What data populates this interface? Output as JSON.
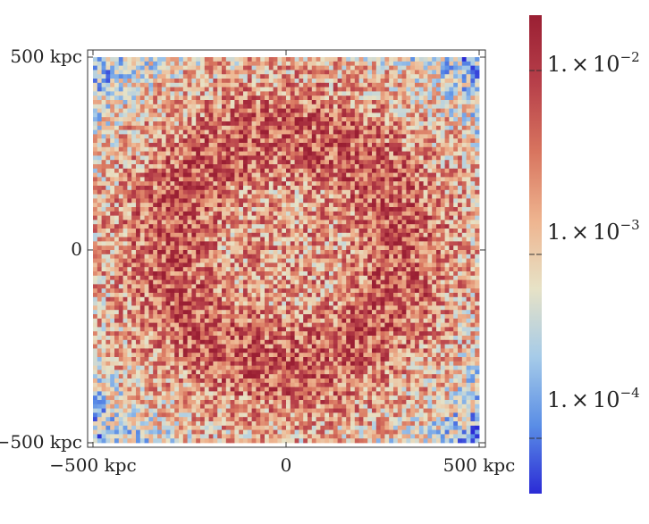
{
  "chart_data": {
    "type": "heatmap",
    "title": "",
    "xlabel": "",
    "ylabel": "",
    "xlim": [
      -500,
      500
    ],
    "ylim": [
      -500,
      500
    ],
    "units": "kpc",
    "x_ticks": [
      {
        "value": -500,
        "label": "−500 kpc"
      },
      {
        "value": 0,
        "label": "0"
      },
      {
        "value": 500,
        "label": "500 kpc"
      }
    ],
    "y_ticks": [
      {
        "value": 500,
        "label": "500 kpc"
      },
      {
        "value": 0,
        "label": "0"
      },
      {
        "value": -500,
        "label": "−500 kpc"
      }
    ],
    "colorbar": {
      "scale": "log",
      "range": [
        5e-05,
        0.02
      ],
      "colormap": [
        "#2b2bd6",
        "#5a8ee6",
        "#a6cbe8",
        "#e7e2c6",
        "#eeb48f",
        "#d8755f",
        "#b7404a",
        "#9a1f33"
      ],
      "ticks": [
        {
          "value": 0.01,
          "mantissa": "1.",
          "times": "×",
          "base": "10",
          "exponent": "−2"
        },
        {
          "value": 0.001,
          "mantissa": "1.",
          "times": "×",
          "base": "10",
          "exponent": "−3"
        },
        {
          "value": 0.0001,
          "mantissa": "1.",
          "times": "×",
          "base": "10",
          "exponent": "−4"
        }
      ]
    },
    "field_description_visual": {
      "inner_disk_radius_kpc": 140,
      "ring_radius_kpc": 300,
      "corner_level": 0.0003,
      "ring_level": 0.006
    }
  }
}
